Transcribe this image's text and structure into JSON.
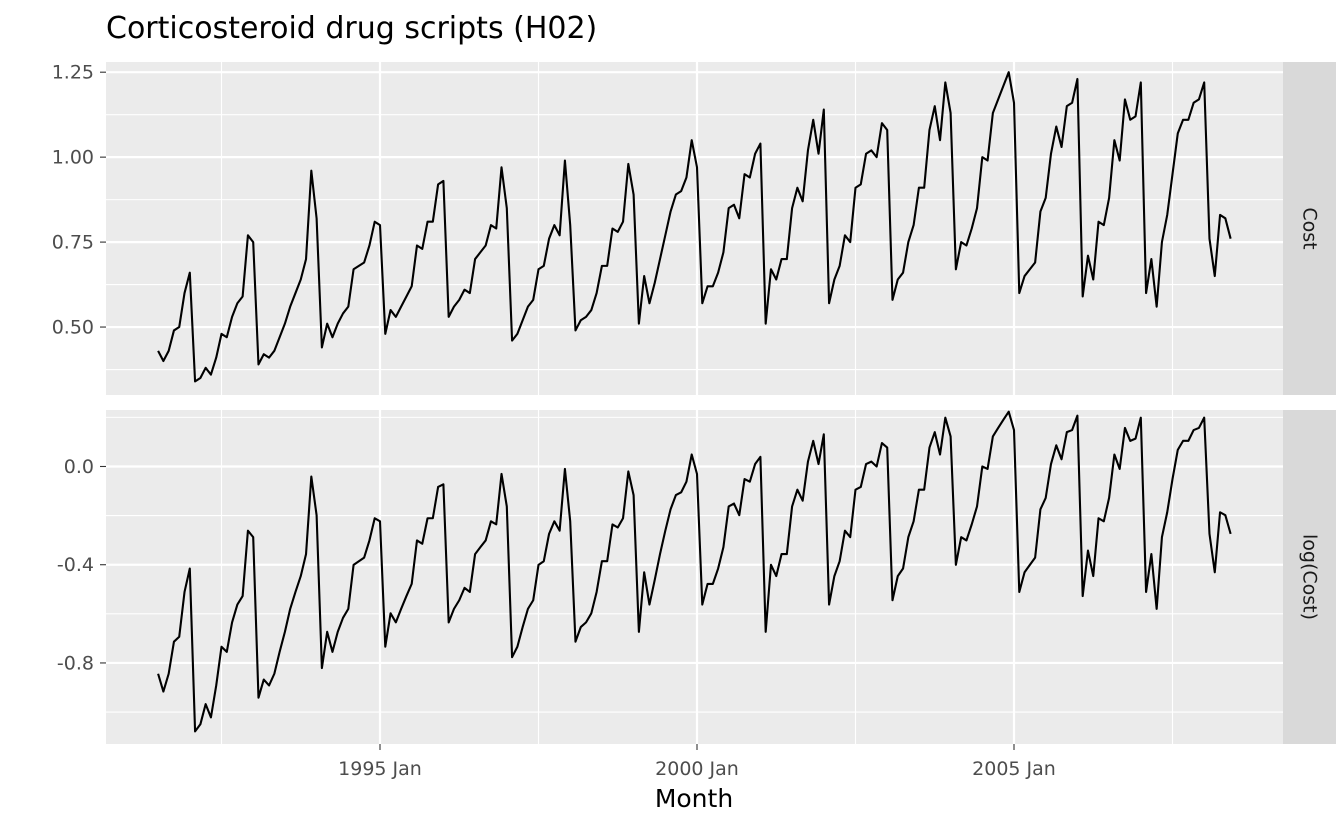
{
  "chart_data": {
    "type": "line",
    "title": "Corticosteroid drug scripts (H02)",
    "xlabel": "Month",
    "x_start": "1991 Jul",
    "x_frequency": "monthly",
    "x_ticks": [
      "1995 Jan",
      "2000 Jan",
      "2005 Jan"
    ],
    "grid": true,
    "facets": [
      {
        "name": "Cost",
        "ylim": [
          0.3,
          1.28
        ],
        "y_ticks": [
          0.5,
          0.75,
          1.0,
          1.25
        ],
        "y_tick_labels": [
          "0.50",
          "0.75",
          "1.00",
          "1.25"
        ]
      },
      {
        "name": "log(Cost)",
        "ylim": [
          -1.13,
          0.23
        ],
        "y_ticks": [
          -0.8,
          -0.4,
          0.0
        ],
        "y_tick_labels": [
          "-0.8",
          "-0.4",
          "0.0"
        ]
      }
    ],
    "values": [
      0.43,
      0.4,
      0.43,
      0.49,
      0.5,
      0.6,
      0.66,
      0.34,
      0.35,
      0.38,
      0.36,
      0.41,
      0.48,
      0.47,
      0.53,
      0.57,
      0.59,
      0.77,
      0.75,
      0.39,
      0.42,
      0.41,
      0.43,
      0.47,
      0.51,
      0.56,
      0.6,
      0.64,
      0.7,
      0.96,
      0.82,
      0.44,
      0.51,
      0.47,
      0.51,
      0.54,
      0.56,
      0.67,
      0.68,
      0.69,
      0.74,
      0.81,
      0.8,
      0.48,
      0.55,
      0.53,
      0.56,
      0.59,
      0.62,
      0.74,
      0.73,
      0.81,
      0.81,
      0.92,
      0.93,
      0.53,
      0.56,
      0.58,
      0.61,
      0.6,
      0.7,
      0.72,
      0.74,
      0.8,
      0.79,
      0.97,
      0.85,
      0.46,
      0.48,
      0.52,
      0.56,
      0.58,
      0.67,
      0.68,
      0.76,
      0.8,
      0.77,
      0.99,
      0.8,
      0.49,
      0.52,
      0.53,
      0.55,
      0.6,
      0.68,
      0.68,
      0.79,
      0.78,
      0.81,
      0.98,
      0.89,
      0.51,
      0.65,
      0.57,
      0.63,
      0.7,
      0.77,
      0.84,
      0.89,
      0.9,
      0.94,
      1.05,
      0.97,
      0.57,
      0.62,
      0.62,
      0.66,
      0.72,
      0.85,
      0.86,
      0.82,
      0.95,
      0.94,
      1.01,
      1.04,
      0.51,
      0.67,
      0.64,
      0.7,
      0.7,
      0.85,
      0.91,
      0.87,
      1.02,
      1.11,
      1.01,
      1.14,
      0.57,
      0.64,
      0.68,
      0.77,
      0.75,
      0.91,
      0.92,
      1.01,
      1.02,
      1.0,
      1.1,
      1.08,
      0.58,
      0.64,
      0.66,
      0.75,
      0.8,
      0.91,
      0.91,
      1.08,
      1.15,
      1.05,
      1.22,
      1.13,
      0.67,
      0.75,
      0.74,
      0.79,
      0.85,
      1.0,
      0.99,
      1.13,
      1.17,
      1.21,
      1.25,
      1.16,
      0.6,
      0.65,
      0.67,
      0.69,
      0.84,
      0.88,
      1.01,
      1.09,
      1.03,
      1.15,
      1.16,
      1.23,
      0.59,
      0.71,
      0.64,
      0.81,
      0.8,
      0.88,
      1.05,
      0.99,
      1.17,
      1.11,
      1.12,
      1.22,
      0.6,
      0.7,
      0.56,
      0.75,
      0.83,
      0.95,
      1.07,
      1.11,
      1.11,
      1.16,
      1.17,
      1.22,
      0.76,
      0.65,
      0.83,
      0.82,
      0.76
    ]
  }
}
